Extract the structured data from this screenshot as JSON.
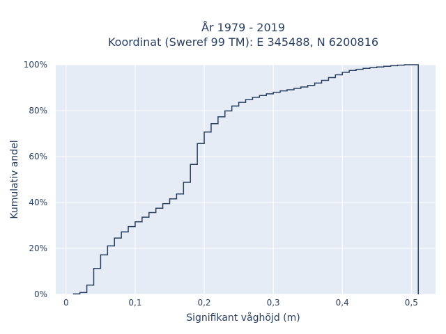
{
  "chart_data": {
    "type": "line",
    "title_lines": [
      "År 1979 - 2019",
      "Koordinat (Sweref 99 TM): E 345488, N 6200816"
    ],
    "xlabel": "Signifikant våghöjd (m)",
    "ylabel": "Kumulativ andel",
    "xlim": [
      -0.015,
      0.535
    ],
    "ylim": [
      0,
      1.0
    ],
    "x_ticks": [
      0,
      0.1,
      0.2,
      0.3,
      0.4,
      0.5
    ],
    "x_tick_labels": [
      "0",
      "0,1",
      "0,2",
      "0,3",
      "0,4",
      "0,5"
    ],
    "y_ticks": [
      0,
      0.2,
      0.4,
      0.6,
      0.8,
      1.0
    ],
    "y_tick_labels": [
      "0%",
      "20%",
      "40%",
      "60%",
      "80%",
      "100%"
    ],
    "grid": true,
    "line_shape": "step",
    "line_color": "#2a3f5f",
    "background_color": "#e5ecf6",
    "series": [
      {
        "x": [
          0.01,
          0.02,
          0.03,
          0.04,
          0.05,
          0.06,
          0.07,
          0.08,
          0.09,
          0.1,
          0.11,
          0.12,
          0.13,
          0.14,
          0.15,
          0.16,
          0.17,
          0.18,
          0.19,
          0.2,
          0.21,
          0.22,
          0.23,
          0.24,
          0.25,
          0.26,
          0.27,
          0.28,
          0.29,
          0.3,
          0.31,
          0.32,
          0.33,
          0.34,
          0.35,
          0.36,
          0.37,
          0.38,
          0.39,
          0.4,
          0.41,
          0.42,
          0.43,
          0.44,
          0.45,
          0.46,
          0.47,
          0.48,
          0.49,
          0.5,
          0.51
        ],
        "y": [
          0.002,
          0.008,
          0.04,
          0.113,
          0.172,
          0.211,
          0.245,
          0.272,
          0.295,
          0.316,
          0.336,
          0.356,
          0.375,
          0.395,
          0.416,
          0.437,
          0.488,
          0.566,
          0.657,
          0.707,
          0.743,
          0.773,
          0.799,
          0.82,
          0.836,
          0.848,
          0.858,
          0.866,
          0.873,
          0.88,
          0.886,
          0.891,
          0.897,
          0.903,
          0.91,
          0.92,
          0.932,
          0.944,
          0.956,
          0.967,
          0.975,
          0.98,
          0.984,
          0.987,
          0.99,
          0.993,
          0.996,
          0.998,
          1.0,
          1.0,
          0.0
        ]
      }
    ]
  }
}
